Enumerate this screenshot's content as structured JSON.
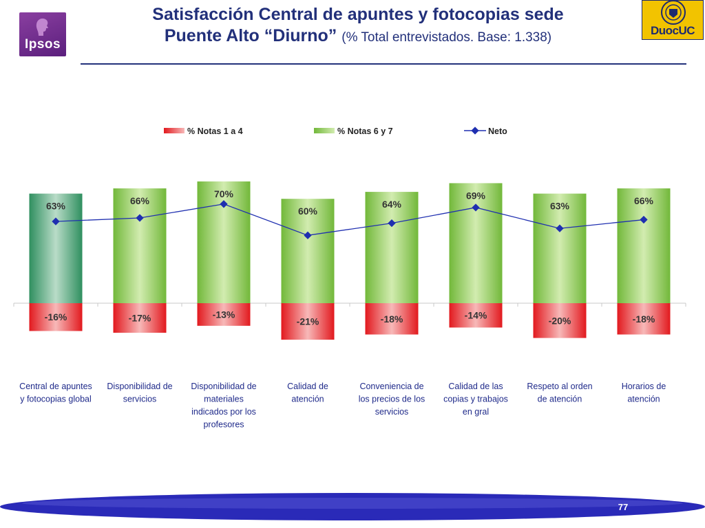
{
  "header": {
    "title_line1": "Satisfacción Central de apuntes y fotocopias sede",
    "title_line2": "Puente Alto “Diurno”",
    "title_note": "(% Total entrevistados. Base: 1.338)",
    "logo_left_text": "Ipsos",
    "logo_right_text": "DuocUC"
  },
  "chart_data": {
    "type": "bar",
    "title": "Satisfacción Central de apuntes y fotocopias sede Puente Alto “Diurno”",
    "categories": [
      "Central de apuntes y fotocopias global",
      "Disponibilidad de servicios",
      "Disponibilidad de materiales indicados por los profesores",
      "Calidad de atención",
      "Conveniencia de los precios de los servicios",
      "Calidad de las copias y trabajos en gral",
      "Respeto al orden de atención",
      "Horarios de atención"
    ],
    "category_lines": [
      [
        "Central de apuntes",
        "y fotocopias global"
      ],
      [
        "Disponibilidad de",
        "servicios"
      ],
      [
        "Disponibilidad de",
        "materiales",
        "indicados por los",
        "profesores"
      ],
      [
        "Calidad de",
        "atención"
      ],
      [
        "Conveniencia de",
        "los precios de los",
        "servicios"
      ],
      [
        "Calidad de las",
        "copias y trabajos",
        "en gral"
      ],
      [
        "Respeto al orden",
        "de atención"
      ],
      [
        "Horarios de",
        "atención"
      ]
    ],
    "series": [
      {
        "name": "% Notas 1 a 4",
        "values": [
          -16,
          -17,
          -13,
          -21,
          -18,
          -14,
          -20,
          -18
        ],
        "labels": [
          "-16%",
          "-17%",
          "-13%",
          "-21%",
          "-18%",
          "-14%",
          "-20%",
          "-18%"
        ],
        "color": "#e8262a"
      },
      {
        "name": "% Notas 6 y 7",
        "values": [
          63,
          66,
          70,
          60,
          64,
          69,
          63,
          66
        ],
        "labels": [
          "63%",
          "66%",
          "70%",
          "60%",
          "64%",
          "69%",
          "63%",
          "66%"
        ],
        "color": "#7fc241"
      },
      {
        "name": "Neto",
        "values": [
          47,
          49,
          57,
          39,
          46,
          55,
          43,
          48
        ],
        "color": "#1f2fb0"
      }
    ],
    "highlight_color": "#3a9a6a",
    "ylim": [
      -25,
      75
    ],
    "legend_position": "top-center"
  },
  "footer": {
    "page_number": "77"
  }
}
